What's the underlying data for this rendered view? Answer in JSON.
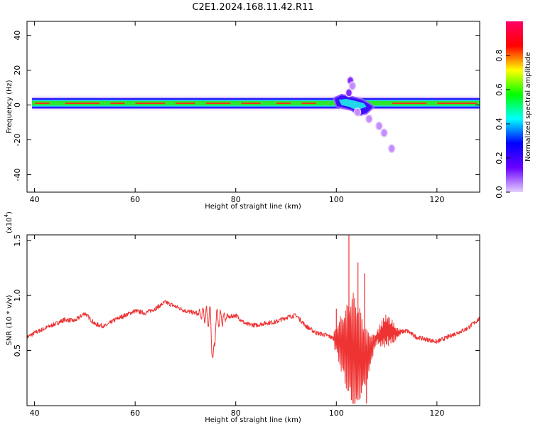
{
  "title": "C2E1.2024.168.11.42.R11",
  "chart_data": [
    {
      "type": "heatmap",
      "xlabel": "Height of straight line (km)",
      "ylabel": "Frequency (Hz)",
      "xlim": [
        38.5,
        128.5
      ],
      "ylim": [
        -50,
        48
      ],
      "x_ticks": [
        40,
        60,
        80,
        100,
        120
      ],
      "y_ticks": [
        40,
        20,
        0,
        -20,
        -40
      ],
      "colorbar": {
        "label": "Normalized spectral amplitude",
        "range": [
          0.0,
          1.0
        ],
        "ticks": [
          "0.0",
          "0.2",
          "0.4",
          "0.6",
          "0.8"
        ],
        "colors": [
          "#e5cffe",
          "#6a00ff",
          "#0000ff",
          "#00ffff",
          "#00ff00",
          "#ffff00",
          "#ff0000",
          "#ff0066"
        ]
      },
      "band": {
        "center_freq": 1,
        "outer_half_width": 3,
        "inner_half_width": 1.3,
        "x_start": 39.5,
        "x_end": 128.5
      },
      "features": [
        {
          "x": 102.8,
          "y": 14,
          "value": 0.15
        },
        {
          "x": 103.2,
          "y": 11,
          "value": 0.1
        },
        {
          "x": 102.5,
          "y": 7,
          "value": 0.15
        },
        {
          "x": 104.2,
          "y": -4,
          "value": 0.1
        },
        {
          "x": 106.5,
          "y": -8,
          "value": 0.1
        },
        {
          "x": 108.5,
          "y": -12,
          "value": 0.05
        },
        {
          "x": 109.5,
          "y": -16,
          "value": 0.05
        },
        {
          "x": 111,
          "y": -25,
          "value": 0.05
        }
      ]
    },
    {
      "type": "line",
      "xlabel": "Height of straight line (km)",
      "ylabel": "SNR (10 * v/v)",
      "ylabel_unit_prefix": "(x10",
      "ylabel_unit_exp": "4",
      "ylabel_unit_suffix": ")",
      "xlim": [
        38.5,
        128.5
      ],
      "ylim": [
        0.0,
        1.55
      ],
      "x_ticks": [
        40,
        60,
        80,
        100,
        120
      ],
      "y_ticks": [
        "0.5",
        "1.0",
        "1.5"
      ],
      "color": "#ee3333",
      "series": [
        {
          "x": [
            38.5,
            40,
            42,
            44,
            46,
            48,
            50,
            52,
            54,
            56,
            58,
            60,
            62,
            64,
            66,
            68,
            70,
            72,
            74,
            76,
            78,
            80,
            82,
            84,
            86,
            88,
            90,
            92,
            94,
            96,
            98,
            100,
            102,
            104,
            106,
            108,
            110,
            112,
            114,
            116,
            118,
            120,
            122,
            124,
            126,
            128.5
          ],
          "y": [
            0.62,
            0.66,
            0.7,
            0.74,
            0.78,
            0.77,
            0.84,
            0.74,
            0.72,
            0.78,
            0.82,
            0.86,
            0.84,
            0.88,
            0.94,
            0.9,
            0.86,
            0.84,
            0.82,
            0.78,
            0.8,
            0.82,
            0.74,
            0.73,
            0.75,
            0.76,
            0.8,
            0.82,
            0.72,
            0.66,
            0.64,
            0.6,
            0.52,
            0.46,
            0.44,
            0.62,
            0.68,
            0.66,
            0.68,
            0.62,
            0.6,
            0.58,
            0.62,
            0.66,
            0.7,
            0.79
          ]
        }
      ]
    }
  ]
}
